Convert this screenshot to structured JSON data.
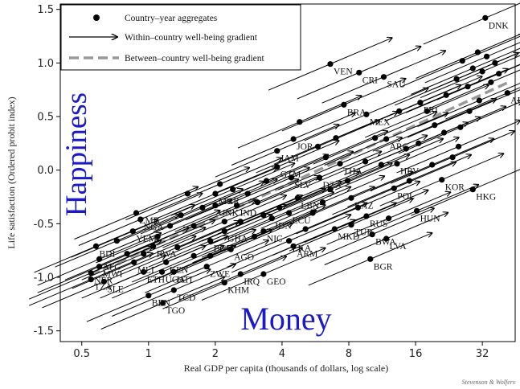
{
  "chart_data": {
    "type": "scatter",
    "xlabel": "Real GDP per capita (thousands of dollars, log scale)",
    "ylabel": "Life satisfaction (Ordered probit index)",
    "x_scale": "log2",
    "xlim": [
      0.4,
      45
    ],
    "ylim": [
      -1.6,
      1.55
    ],
    "x_ticks": [
      "0.5",
      "1",
      "2",
      "4",
      "8",
      "16",
      "32"
    ],
    "x_tick_values": [
      0.5,
      1,
      2,
      4,
      8,
      16,
      32
    ],
    "y_ticks": [
      "-1.5",
      "-1.0",
      "-0.5",
      "0.0",
      "0.5",
      "1.0",
      "1.5"
    ],
    "y_tick_values": [
      -1.5,
      -1.0,
      -0.5,
      0.0,
      0.5,
      1.0,
      1.5
    ],
    "legend": {
      "placement": "top-left",
      "entries": [
        {
          "label": "Country–year aggregates",
          "marker": "dot"
        },
        {
          "label": "Within–country well-being gradient",
          "marker": "arrow"
        },
        {
          "label": "Between–country well-being gradient",
          "marker": "dashed-line"
        }
      ]
    },
    "between_gradient": {
      "x": [
        0.55,
        42
      ],
      "y": [
        -0.98,
        0.82
      ],
      "color": "#999999"
    },
    "within_gradient_slope": 0.38,
    "labeled_points": [
      {
        "label": "DNK",
        "x": 33.0,
        "y": 1.42
      },
      {
        "label": "VEN",
        "x": 6.6,
        "y": 0.99
      },
      {
        "label": "CRI",
        "x": 8.9,
        "y": 0.91
      },
      {
        "label": "SAU",
        "x": 11.5,
        "y": 0.87
      },
      {
        "label": "BRA",
        "x": 7.6,
        "y": 0.61
      },
      {
        "label": "MEX",
        "x": 9.6,
        "y": 0.52
      },
      {
        "label": "PRI",
        "x": 16.8,
        "y": 0.63
      },
      {
        "label": "ARE",
        "x": 41.5,
        "y": 0.72
      },
      {
        "label": "JOR",
        "x": 4.5,
        "y": 0.29
      },
      {
        "label": "JAM",
        "x": 3.8,
        "y": 0.18
      },
      {
        "label": "ARG",
        "x": 11.8,
        "y": 0.29
      },
      {
        "label": "GTM",
        "x": 3.8,
        "y": 0.03
      },
      {
        "label": "SLV",
        "x": 4.4,
        "y": -0.07
      },
      {
        "label": "DZA",
        "x": 5.9,
        "y": -0.07
      },
      {
        "label": "THA",
        "x": 7.3,
        "y": 0.06
      },
      {
        "label": "HRV",
        "x": 13.2,
        "y": 0.06
      },
      {
        "label": "POL",
        "x": 12.8,
        "y": -0.17
      },
      {
        "label": "KOR",
        "x": 21.0,
        "y": -0.09
      },
      {
        "label": "HKG",
        "x": 29.0,
        "y": -0.18
      },
      {
        "label": "MAR",
        "x": 2.0,
        "y": -0.22
      },
      {
        "label": "LBN",
        "x": 4.7,
        "y": -0.26
      },
      {
        "label": "KAZ",
        "x": 8.2,
        "y": -0.26
      },
      {
        "label": "UNK",
        "x": 2.0,
        "y": -0.33
      },
      {
        "label": "IND",
        "x": 2.5,
        "y": -0.33
      },
      {
        "label": "ECU",
        "x": 4.3,
        "y": -0.4
      },
      {
        "label": "IDN",
        "x": 3.6,
        "y": -0.45
      },
      {
        "label": "HUN",
        "x": 16.2,
        "y": -0.38
      },
      {
        "label": "ZMB",
        "x": 0.88,
        "y": -0.4
      },
      {
        "label": "NGA",
        "x": 0.92,
        "y": -0.46
      },
      {
        "label": "NIC",
        "x": 3.3,
        "y": -0.57
      },
      {
        "label": "TUR",
        "x": 8.2,
        "y": -0.51
      },
      {
        "label": "BWA",
        "x": 10.2,
        "y": -0.6
      },
      {
        "label": "LVA",
        "x": 11.8,
        "y": -0.64
      },
      {
        "label": "RUS",
        "x": 9.6,
        "y": -0.43
      },
      {
        "label": "YEM",
        "x": 0.85,
        "y": -0.57
      },
      {
        "label": "GHA",
        "x": 2.2,
        "y": -0.57
      },
      {
        "label": "BGD",
        "x": 1.9,
        "y": -0.66
      },
      {
        "label": "LKA",
        "x": 4.3,
        "y": -0.66
      },
      {
        "label": "ARM",
        "x": 4.5,
        "y": -0.71
      },
      {
        "label": "MKD",
        "x": 6.9,
        "y": -0.55
      },
      {
        "label": "BDI",
        "x": 0.58,
        "y": -0.71
      },
      {
        "label": "RWA",
        "x": 1.05,
        "y": -0.71
      },
      {
        "label": "AGO",
        "x": 2.35,
        "y": -0.74
      },
      {
        "label": "AFG",
        "x": 0.6,
        "y": -0.83
      },
      {
        "label": "MLI",
        "x": 0.86,
        "y": -0.86
      },
      {
        "label": "ZWE",
        "x": 1.83,
        "y": -0.9
      },
      {
        "label": "MWI",
        "x": 0.6,
        "y": -0.9
      },
      {
        "label": "KEN",
        "x": 1.2,
        "y": -0.86
      },
      {
        "label": "ETH",
        "x": 0.95,
        "y": -0.95
      },
      {
        "label": "UGA",
        "x": 1.15,
        "y": -0.95
      },
      {
        "label": "HTI",
        "x": 1.3,
        "y": -0.95
      },
      {
        "label": "NER",
        "x": 0.55,
        "y": -0.96
      },
      {
        "label": "IRQ",
        "x": 2.6,
        "y": -0.97
      },
      {
        "label": "GEO",
        "x": 3.3,
        "y": -0.97
      },
      {
        "label": "TZA",
        "x": 0.55,
        "y": -1.02
      },
      {
        "label": "SLE",
        "x": 0.63,
        "y": -1.04
      },
      {
        "label": "KHM",
        "x": 2.2,
        "y": -1.05
      },
      {
        "label": "TCD",
        "x": 1.3,
        "y": -1.12
      },
      {
        "label": "BEN",
        "x": 1.0,
        "y": -1.17
      },
      {
        "label": "TGO",
        "x": 1.16,
        "y": -1.24
      },
      {
        "label": "BGR",
        "x": 10.0,
        "y": -0.83
      }
    ],
    "unlabeled_points": [
      {
        "x": 0.72,
        "y": -0.66
      },
      {
        "x": 0.8,
        "y": -0.78
      },
      {
        "x": 0.95,
        "y": -0.78
      },
      {
        "x": 1.1,
        "y": -0.62
      },
      {
        "x": 1.25,
        "y": -0.52
      },
      {
        "x": 1.4,
        "y": -0.42
      },
      {
        "x": 1.6,
        "y": -0.52
      },
      {
        "x": 1.75,
        "y": -0.35
      },
      {
        "x": 1.5,
        "y": -0.22
      },
      {
        "x": 1.35,
        "y": -0.72
      },
      {
        "x": 1.6,
        "y": -0.8
      },
      {
        "x": 1.9,
        "y": -0.8
      },
      {
        "x": 2.2,
        "y": -0.48
      },
      {
        "x": 2.6,
        "y": -0.48
      },
      {
        "x": 2.8,
        "y": -0.22
      },
      {
        "x": 3.1,
        "y": -0.3
      },
      {
        "x": 2.4,
        "y": -0.18
      },
      {
        "x": 3.4,
        "y": -0.1
      },
      {
        "x": 3.0,
        "y": -0.62
      },
      {
        "x": 3.9,
        "y": -0.35
      },
      {
        "x": 5.1,
        "y": -0.55
      },
      {
        "x": 5.5,
        "y": -0.4
      },
      {
        "x": 6.1,
        "y": -0.3
      },
      {
        "x": 6.6,
        "y": -0.18
      },
      {
        "x": 6.3,
        "y": 0.12
      },
      {
        "x": 5.8,
        "y": 0.22
      },
      {
        "x": 7.0,
        "y": 0.3
      },
      {
        "x": 7.9,
        "y": -0.1
      },
      {
        "x": 8.8,
        "y": -0.35
      },
      {
        "x": 9.5,
        "y": 0.08
      },
      {
        "x": 10.5,
        "y": 0.3
      },
      {
        "x": 11.2,
        "y": 0.05
      },
      {
        "x": 12.1,
        "y": -0.45
      },
      {
        "x": 13.5,
        "y": 0.55
      },
      {
        "x": 14.5,
        "y": 0.2
      },
      {
        "x": 16.5,
        "y": 0.25
      },
      {
        "x": 18.0,
        "y": 0.55
      },
      {
        "x": 19.5,
        "y": 0.42
      },
      {
        "x": 21.5,
        "y": 0.35
      },
      {
        "x": 23.5,
        "y": 0.12
      },
      {
        "x": 22.0,
        "y": 0.7
      },
      {
        "x": 24.5,
        "y": 0.85
      },
      {
        "x": 26.0,
        "y": 1.02
      },
      {
        "x": 27.5,
        "y": 0.78
      },
      {
        "x": 29.0,
        "y": 0.95
      },
      {
        "x": 30.5,
        "y": 1.1
      },
      {
        "x": 32.0,
        "y": 0.92
      },
      {
        "x": 33.5,
        "y": 1.06
      },
      {
        "x": 35.0,
        "y": 0.82
      },
      {
        "x": 36.5,
        "y": 1.0
      },
      {
        "x": 38.0,
        "y": 0.9
      },
      {
        "x": 31.0,
        "y": 0.65
      },
      {
        "x": 28.0,
        "y": 0.55
      },
      {
        "x": 25.5,
        "y": 0.4
      },
      {
        "x": 25.0,
        "y": 0.22
      },
      {
        "x": 19.0,
        "y": 0.05
      },
      {
        "x": 15.0,
        "y": -0.1
      },
      {
        "x": 4.8,
        "y": 0.45
      },
      {
        "x": 3.3,
        "y": -0.42
      },
      {
        "x": 2.1,
        "y": -0.13
      }
    ]
  },
  "overlay": {
    "happiness": "Happiness",
    "money": "Money",
    "credit": "Stevenson & Wolfers",
    "text_color": "#1a1ac8"
  }
}
